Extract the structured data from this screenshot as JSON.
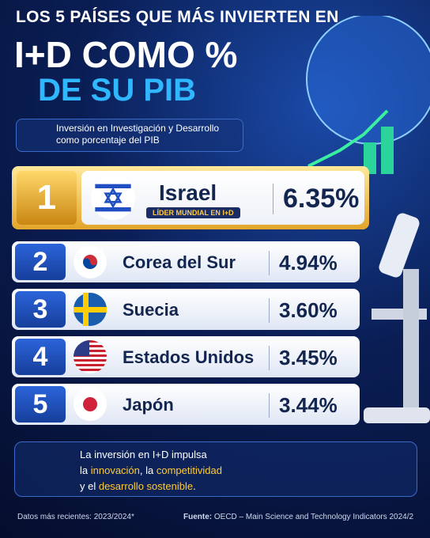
{
  "header": {
    "line1": "LOS 5 PAÍSES QUE MÁS INVIERTEN EN",
    "line2": "I+D COMO %",
    "line3": "DE SU PIB"
  },
  "subtitle": [
    "Inversión en Investigación y Desarrollo",
    "como porcentaje del PIB"
  ],
  "ranking": [
    {
      "rank": 1,
      "country": "Israel",
      "badge": "LÍDER MUNDIAL EN I+D",
      "value": "6.35%"
    },
    {
      "rank": 2,
      "country": "Corea del Sur",
      "value": "4.94%"
    },
    {
      "rank": 3,
      "country": "Suecia",
      "value": "3.60%"
    },
    {
      "rank": 4,
      "country": "Estados Unidos",
      "value": "3.45%"
    },
    {
      "rank": 5,
      "country": "Japón",
      "value": "3.44%"
    }
  ],
  "message": [
    [
      {
        "text": "La inversión en I+D impulsa",
        "highlight": false
      }
    ],
    [
      {
        "text": "la ",
        "highlight": false
      },
      {
        "text": "innovación",
        "highlight": true
      },
      {
        "text": ", la ",
        "highlight": false
      },
      {
        "text": "competitividad",
        "highlight": true
      }
    ],
    [
      {
        "text": "y el ",
        "highlight": false
      },
      {
        "text": "desarrollo sostenible",
        "highlight": true
      },
      {
        "text": ".",
        "highlight": false
      }
    ]
  ],
  "footer": {
    "data_note": "Datos más recientes: 2023/2024*",
    "source_label": "Fuente:",
    "source": "OECD – Main Science and Technology Indicators 2024/2"
  }
}
